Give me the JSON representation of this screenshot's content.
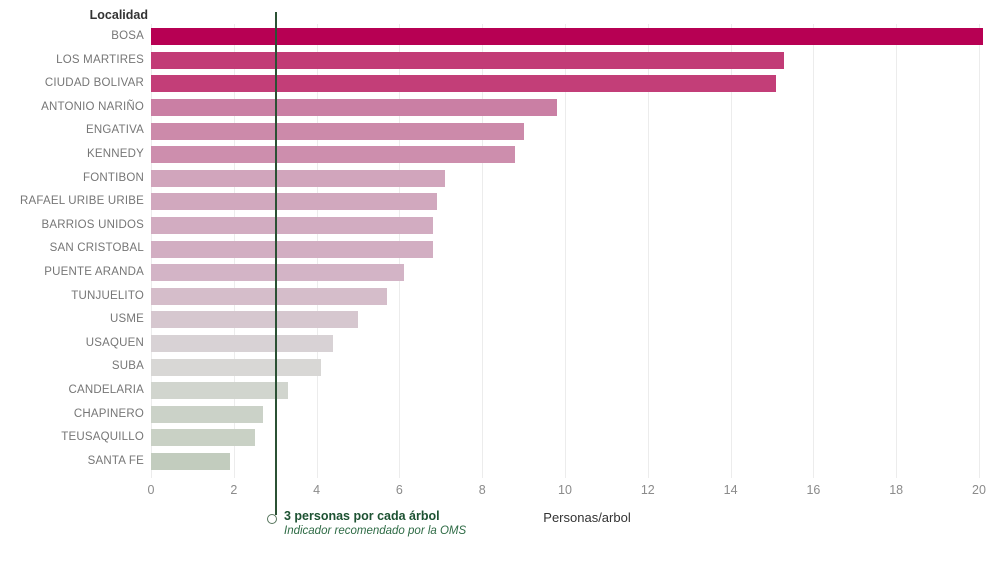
{
  "chart_data": {
    "type": "bar",
    "orientation": "horizontal",
    "column_header": "Localidad",
    "xlabel": "Personas/arbol",
    "categories": [
      "BOSA",
      "LOS MARTIRES",
      "CIUDAD BOLIVAR",
      "ANTONIO NARIÑO",
      "ENGATIVA",
      "KENNEDY",
      "FONTIBON",
      "RAFAEL URIBE URIBE",
      "BARRIOS UNIDOS",
      "SAN CRISTOBAL",
      "PUENTE ARANDA",
      "TUNJUELITO",
      "USME",
      "USAQUEN",
      "SUBA",
      "CANDELARIA",
      "CHAPINERO",
      "TEUSAQUILLO",
      "SANTA FE"
    ],
    "values": [
      20.1,
      15.3,
      15.1,
      9.8,
      9.0,
      8.8,
      7.1,
      6.9,
      6.8,
      6.8,
      6.1,
      5.7,
      5.0,
      4.4,
      4.1,
      3.3,
      2.7,
      2.5,
      1.9
    ],
    "bar_colors": [
      "#b70053",
      "#c23b76",
      "#c33e78",
      "#ca7fa4",
      "#cc8aaa",
      "#cd8ead",
      "#d1a5bc",
      "#d1a8be",
      "#d2acc1",
      "#d2aec2",
      "#d3b4c6",
      "#d5bdca",
      "#d6c7cf",
      "#d8d2d5",
      "#d8d7d5",
      "#d1d5ce",
      "#cbd2c8",
      "#c9d1c5",
      "#c2ccbe"
    ],
    "xlim": [
      0,
      20
    ],
    "x_ticks": [
      0,
      2,
      4,
      6,
      8,
      10,
      12,
      14,
      16,
      18,
      20
    ],
    "grid": "vertical-light",
    "legend": "none",
    "reference_line": {
      "value": 3,
      "label": "3 personas por cada árbol",
      "sublabel": "Indicador recomendado por la OMS",
      "line_color": "#2b5134",
      "label_color": "#1d5232",
      "sublabel_color": "#2e6b45"
    }
  },
  "colors": {
    "background": "#ffffff",
    "gridline": "#ececec",
    "tick_label": "#8b8b8b",
    "category_label": "#767676",
    "header_text": "#333333",
    "axis_title": "#333333"
  }
}
